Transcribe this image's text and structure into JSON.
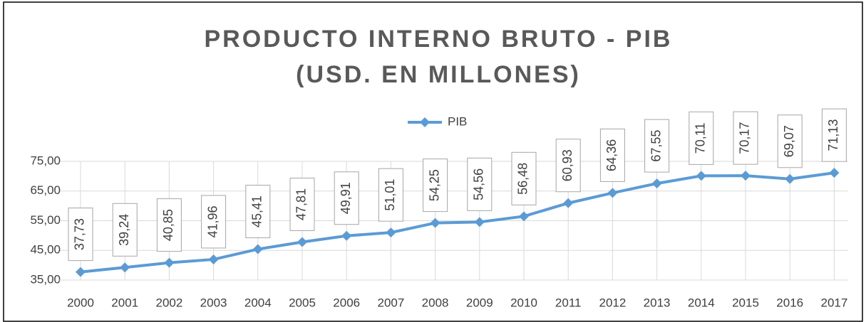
{
  "chart_data": {
    "type": "line",
    "title": "PRODUCTO INTERNO BRUTO - PIB",
    "subtitle": "(USD. EN MILLONES)",
    "categories": [
      "2000",
      "2001",
      "2002",
      "2003",
      "2004",
      "2005",
      "2006",
      "2007",
      "2008",
      "2009",
      "2010",
      "2011",
      "2012",
      "2013",
      "2014",
      "2015",
      "2016",
      "2017"
    ],
    "series": [
      {
        "name": "PIB",
        "color": "#5b9bd5",
        "values": [
          37.73,
          39.24,
          40.85,
          41.96,
          45.41,
          47.81,
          49.91,
          51.01,
          54.25,
          54.56,
          56.48,
          60.93,
          64.36,
          67.55,
          70.11,
          70.17,
          69.07,
          71.13
        ],
        "value_labels": [
          "37,73",
          "39,24",
          "40,85",
          "41,96",
          "45,41",
          "47,81",
          "49,91",
          "51,01",
          "54,25",
          "54,56",
          "56,48",
          "60,93",
          "64,36",
          "67,55",
          "70,11",
          "70,17",
          "69,07",
          "71,13"
        ]
      }
    ],
    "ylim": [
      35,
      75
    ],
    "yticks": [
      {
        "value": 35,
        "label": "35,00"
      },
      {
        "value": 45,
        "label": "45,00"
      },
      {
        "value": 55,
        "label": "55,00"
      },
      {
        "value": 65,
        "label": "65,00"
      },
      {
        "value": 75,
        "label": "75,00"
      }
    ],
    "grid": true,
    "legend": "top"
  }
}
